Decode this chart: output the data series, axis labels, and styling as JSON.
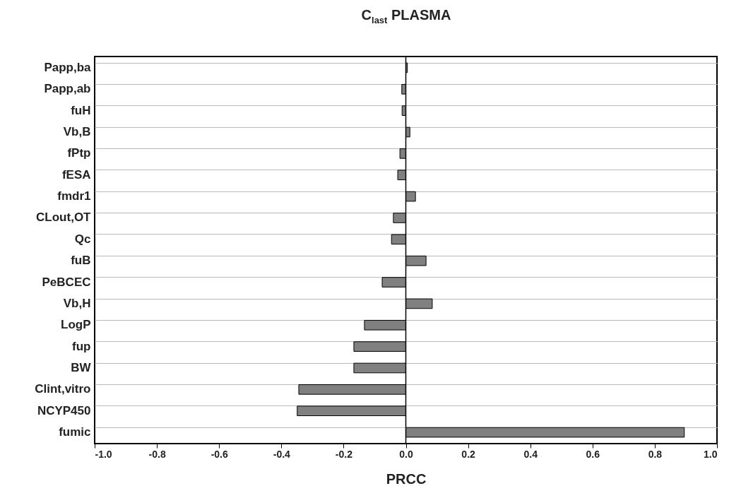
{
  "chart_data": {
    "type": "bar",
    "orientation": "horizontal",
    "title": "C$_{last}$ PLASMA",
    "xlabel": "PRCC",
    "categories": [
      "Papp,ba",
      "Papp,ab",
      "fuH",
      "Vb,B",
      "fPtp",
      "fESA",
      "fmdr1",
      "CLout,OT",
      "Qc",
      "fuB",
      "PeBCEC",
      "Vb,H",
      "LogP",
      "fup",
      "BW",
      "Clint,vitro",
      "NCYP450",
      "fumic"
    ],
    "values": [
      0.005,
      -0.013,
      -0.012,
      0.013,
      -0.019,
      -0.026,
      0.031,
      -0.04,
      -0.046,
      0.065,
      -0.076,
      0.085,
      -0.133,
      -0.167,
      -0.167,
      -0.344,
      -0.349,
      0.895
    ],
    "color": "#808080",
    "xlim": [
      -1,
      1
    ],
    "xticks": [
      {
        "value": -1,
        "label": "-1.0"
      },
      {
        "value": -0.8,
        "label": "-0.8"
      },
      {
        "value": -0.6,
        "label": "-0.6"
      },
      {
        "value": -0.4,
        "label": "-0.4"
      },
      {
        "value": -0.2,
        "label": "-0.2"
      },
      {
        "value": 0,
        "label": "0.0"
      },
      {
        "value": 0.2,
        "label": "0.2"
      },
      {
        "value": 0.4,
        "label": "0.4"
      },
      {
        "value": 0.6,
        "label": "0.6"
      },
      {
        "value": 0.8,
        "label": "0.8"
      },
      {
        "value": 1,
        "label": "1.0"
      }
    ],
    "grid": "y",
    "ref_lines": [
      {
        "axis": "x",
        "value": 0,
        "color": "#000000"
      }
    ]
  }
}
